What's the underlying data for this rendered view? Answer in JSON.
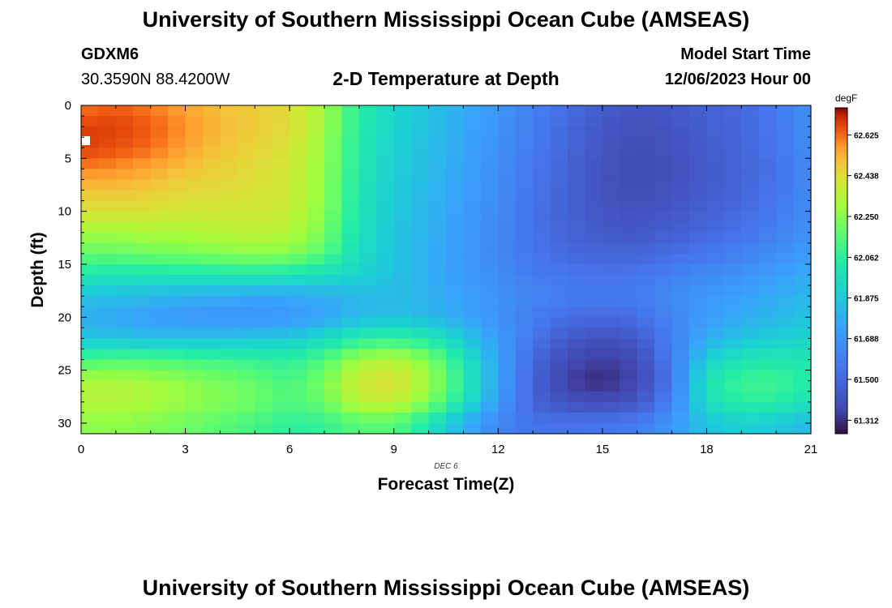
{
  "header": {
    "title_top": "University of Southern Mississippi Ocean Cube (AMSEAS)",
    "title_bottom": "University of Southern Mississippi Ocean Cube (AMSEAS)",
    "station_id": "GDXM6",
    "coords": "30.3590N  88.4200W",
    "plot_title": "2-D Temperature at Depth",
    "model_start_label": "Model Start Time",
    "model_start_value": "12/06/2023 Hour 00"
  },
  "chart_data": {
    "type": "heatmap",
    "title": "2-D Temperature at Depth",
    "xlabel": "Forecast Time(Z)",
    "ylabel": "Depth (ft)",
    "date_label": "DEC 6",
    "x_ticks": [
      "0",
      "3",
      "6",
      "9",
      "12",
      "15",
      "18",
      "21"
    ],
    "y_ticks": [
      "0",
      "5",
      "10",
      "15",
      "20",
      "25",
      "30"
    ],
    "xlim": [
      0,
      21
    ],
    "ylim": [
      31,
      0
    ],
    "colorbar": {
      "unit": "degF",
      "ticks": [
        "62.625",
        "62.438",
        "62.250",
        "62.062",
        "61.875",
        "61.688",
        "61.500",
        "61.312"
      ],
      "range": [
        61.25,
        62.75
      ]
    },
    "x": [
      0,
      1,
      2,
      3,
      4,
      5,
      6,
      7,
      8,
      9,
      10,
      11,
      12,
      13,
      14,
      15,
      16,
      17,
      18,
      19,
      20,
      21
    ],
    "depth": [
      0,
      2,
      4,
      6,
      8,
      10,
      12,
      14,
      16,
      18,
      20,
      22,
      24,
      26,
      28,
      30
    ],
    "values": [
      [
        62.6,
        62.64,
        62.6,
        62.55,
        62.5,
        62.48,
        62.44,
        62.3,
        62.05,
        61.93,
        61.86,
        61.78,
        61.7,
        61.6,
        61.52,
        61.45,
        61.42,
        61.44,
        61.47,
        61.5,
        61.57,
        61.68
      ],
      [
        62.68,
        62.68,
        62.64,
        62.58,
        62.52,
        62.48,
        62.44,
        62.3,
        62.04,
        61.92,
        61.85,
        61.77,
        61.68,
        61.58,
        61.5,
        61.43,
        61.4,
        61.42,
        61.46,
        61.5,
        61.56,
        61.67
      ],
      [
        62.68,
        62.66,
        62.62,
        62.56,
        62.5,
        62.46,
        62.42,
        62.28,
        62.03,
        61.91,
        61.84,
        61.76,
        61.67,
        61.57,
        61.49,
        61.42,
        61.39,
        61.41,
        61.45,
        61.49,
        61.55,
        61.66
      ],
      [
        62.6,
        62.58,
        62.55,
        62.5,
        62.47,
        62.44,
        62.4,
        62.27,
        62.02,
        61.9,
        61.83,
        61.75,
        61.66,
        61.56,
        61.48,
        61.41,
        61.38,
        61.4,
        61.44,
        61.48,
        61.54,
        61.65
      ],
      [
        62.5,
        62.5,
        62.48,
        62.45,
        62.44,
        62.42,
        62.4,
        62.26,
        62.01,
        61.89,
        61.82,
        61.74,
        61.65,
        61.55,
        61.47,
        61.41,
        61.39,
        61.41,
        61.45,
        61.49,
        61.55,
        61.65
      ],
      [
        62.42,
        62.42,
        62.42,
        62.4,
        62.4,
        62.4,
        62.38,
        62.25,
        62.0,
        61.88,
        61.81,
        61.73,
        61.64,
        61.54,
        61.47,
        61.42,
        61.41,
        61.43,
        61.47,
        61.51,
        61.57,
        61.66
      ],
      [
        62.3,
        62.3,
        62.32,
        62.32,
        62.34,
        62.36,
        62.34,
        62.22,
        61.98,
        61.87,
        61.8,
        61.72,
        61.63,
        61.54,
        61.48,
        61.44,
        61.43,
        61.46,
        61.5,
        61.54,
        61.6,
        61.68
      ],
      [
        62.18,
        62.18,
        62.2,
        62.22,
        62.24,
        62.26,
        62.25,
        62.15,
        61.96,
        61.86,
        61.79,
        61.71,
        61.63,
        61.55,
        61.5,
        61.48,
        61.48,
        61.52,
        61.56,
        61.6,
        61.66,
        61.72
      ],
      [
        62.02,
        62.0,
        62.0,
        62.0,
        62.01,
        62.02,
        62.0,
        61.97,
        61.91,
        61.85,
        61.79,
        61.72,
        61.65,
        61.58,
        61.55,
        61.54,
        61.55,
        61.6,
        61.64,
        61.68,
        61.73,
        61.78
      ],
      [
        61.86,
        61.84,
        61.82,
        61.8,
        61.78,
        61.76,
        61.76,
        61.78,
        61.82,
        61.83,
        61.8,
        61.74,
        61.68,
        61.62,
        61.58,
        61.57,
        61.58,
        61.65,
        61.7,
        61.74,
        61.78,
        61.82
      ],
      [
        61.78,
        61.76,
        61.72,
        61.7,
        61.68,
        61.68,
        61.7,
        61.75,
        61.82,
        61.85,
        61.82,
        61.76,
        61.68,
        61.58,
        61.52,
        61.5,
        61.52,
        61.62,
        61.72,
        61.78,
        61.82,
        61.86
      ],
      [
        61.86,
        61.86,
        61.84,
        61.84,
        61.85,
        61.86,
        61.88,
        61.95,
        62.05,
        62.08,
        62.02,
        61.88,
        61.72,
        61.55,
        61.44,
        61.4,
        61.44,
        61.6,
        61.78,
        61.86,
        61.9,
        61.92
      ],
      [
        62.12,
        62.14,
        62.14,
        62.12,
        62.1,
        62.08,
        62.06,
        62.14,
        62.3,
        62.34,
        62.24,
        62.0,
        61.75,
        61.5,
        61.38,
        61.34,
        61.38,
        61.58,
        61.9,
        62.0,
        62.02,
        62.0
      ],
      [
        62.32,
        62.32,
        62.3,
        62.26,
        62.22,
        62.18,
        62.12,
        62.22,
        62.4,
        62.44,
        62.3,
        62.05,
        61.75,
        61.48,
        61.34,
        61.3,
        61.36,
        61.56,
        62.0,
        62.1,
        62.1,
        62.04
      ],
      [
        62.34,
        62.34,
        62.32,
        62.28,
        62.24,
        62.2,
        62.14,
        62.2,
        62.36,
        62.38,
        62.24,
        62.0,
        61.72,
        61.48,
        61.4,
        61.38,
        61.42,
        61.6,
        61.98,
        62.06,
        62.06,
        61.98
      ],
      [
        62.26,
        62.26,
        62.24,
        62.2,
        62.16,
        62.12,
        62.06,
        62.08,
        62.16,
        62.16,
        62.0,
        61.8,
        61.62,
        61.54,
        61.54,
        61.55,
        61.58,
        61.7,
        61.86,
        61.9,
        61.88,
        61.82
      ]
    ]
  }
}
